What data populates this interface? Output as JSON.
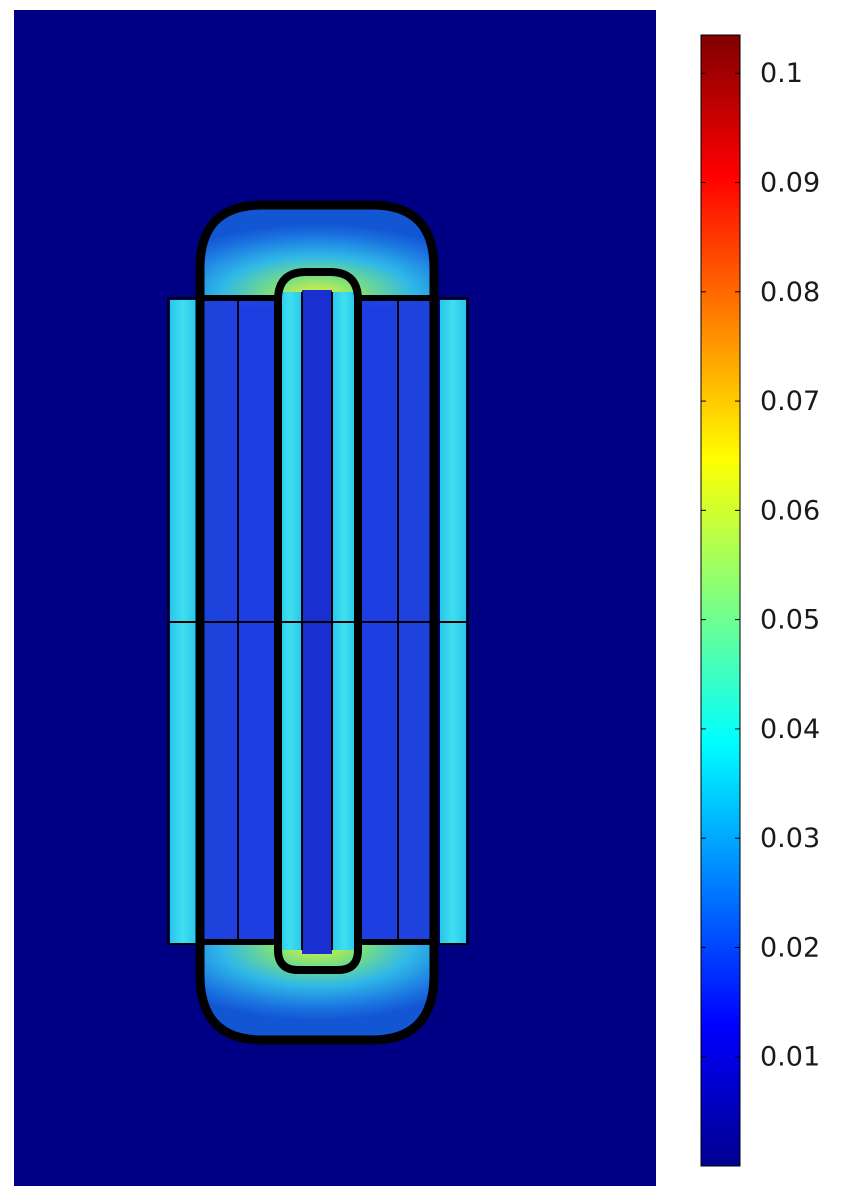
{
  "figure": {
    "background_color": "#000080",
    "description_color_low": "#00008f",
    "colormap": "jet"
  },
  "colorbar": {
    "ticks": [
      "0.1",
      "0.09",
      "0.08",
      "0.07",
      "0.06",
      "0.05",
      "0.04",
      "0.03",
      "0.02",
      "0.01"
    ],
    "tick_values": [
      0.1,
      0.09,
      0.08,
      0.07,
      0.06,
      0.05,
      0.04,
      0.03,
      0.02,
      0.01
    ],
    "min": 0.0,
    "max": 0.1035
  }
}
